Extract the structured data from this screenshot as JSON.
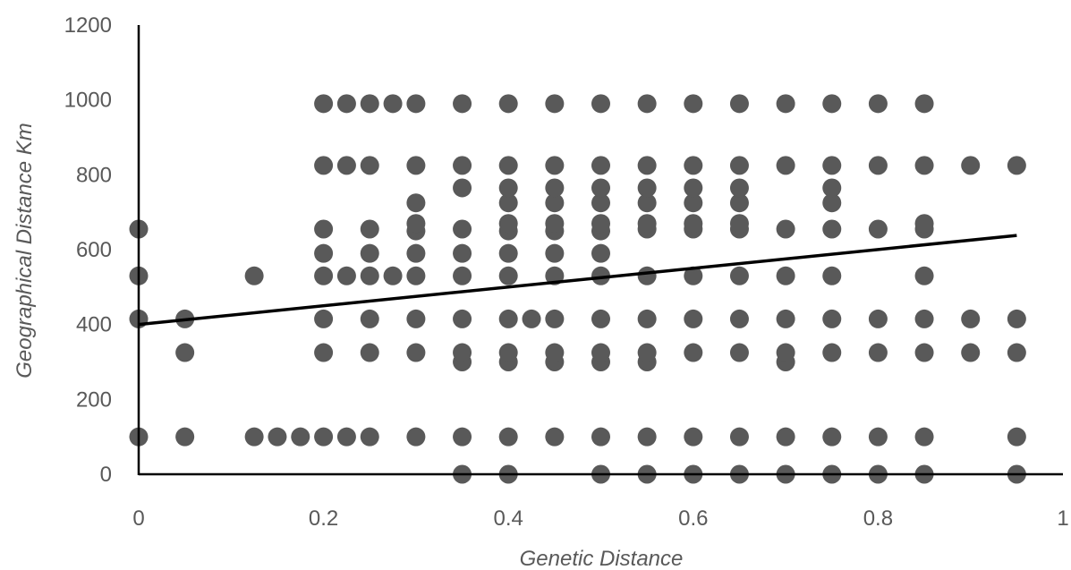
{
  "chart_data": {
    "type": "scatter",
    "title": "",
    "xlabel": "Genetic Distance",
    "ylabel": "Geographical Distance Km",
    "xlim": [
      0,
      1
    ],
    "ylim": [
      0,
      1200
    ],
    "x_ticks": [
      "0",
      "0.2",
      "0.4",
      "0.6",
      "0.8",
      "1"
    ],
    "y_ticks": [
      "0",
      "200",
      "400",
      "600",
      "800",
      "1000",
      "1200"
    ],
    "grid": false,
    "legend": "none",
    "marker_color": "#595959",
    "line_color": "#000000",
    "series": [
      {
        "points": [
          [
            0,
            100
          ],
          [
            0,
            415
          ],
          [
            0,
            530
          ],
          [
            0,
            655
          ],
          [
            0.05,
            100
          ],
          [
            0.05,
            325
          ],
          [
            0.05,
            415
          ],
          [
            0.125,
            100
          ],
          [
            0.125,
            530
          ],
          [
            0.15,
            100
          ],
          [
            0.175,
            100
          ],
          [
            0.2,
            100
          ],
          [
            0.2,
            325
          ],
          [
            0.2,
            415
          ],
          [
            0.2,
            530
          ],
          [
            0.2,
            590
          ],
          [
            0.2,
            655
          ],
          [
            0.2,
            825
          ],
          [
            0.2,
            990
          ],
          [
            0.225,
            100
          ],
          [
            0.225,
            530
          ],
          [
            0.225,
            825
          ],
          [
            0.225,
            990
          ],
          [
            0.25,
            100
          ],
          [
            0.25,
            325
          ],
          [
            0.25,
            415
          ],
          [
            0.25,
            530
          ],
          [
            0.25,
            590
          ],
          [
            0.25,
            655
          ],
          [
            0.25,
            825
          ],
          [
            0.25,
            990
          ],
          [
            0.275,
            530
          ],
          [
            0.275,
            990
          ],
          [
            0.3,
            100
          ],
          [
            0.3,
            325
          ],
          [
            0.3,
            415
          ],
          [
            0.3,
            530
          ],
          [
            0.3,
            590
          ],
          [
            0.3,
            650
          ],
          [
            0.3,
            670
          ],
          [
            0.3,
            725
          ],
          [
            0.3,
            825
          ],
          [
            0.3,
            990
          ],
          [
            0.35,
            0
          ],
          [
            0.35,
            100
          ],
          [
            0.35,
            300
          ],
          [
            0.35,
            325
          ],
          [
            0.35,
            415
          ],
          [
            0.35,
            530
          ],
          [
            0.35,
            590
          ],
          [
            0.35,
            655
          ],
          [
            0.35,
            765
          ],
          [
            0.35,
            825
          ],
          [
            0.35,
            990
          ],
          [
            0.4,
            0
          ],
          [
            0.4,
            100
          ],
          [
            0.4,
            300
          ],
          [
            0.4,
            325
          ],
          [
            0.4,
            415
          ],
          [
            0.4,
            530
          ],
          [
            0.4,
            590
          ],
          [
            0.4,
            650
          ],
          [
            0.4,
            670
          ],
          [
            0.4,
            725
          ],
          [
            0.4,
            765
          ],
          [
            0.4,
            825
          ],
          [
            0.4,
            990
          ],
          [
            0.425,
            415
          ],
          [
            0.45,
            100
          ],
          [
            0.45,
            300
          ],
          [
            0.45,
            325
          ],
          [
            0.45,
            415
          ],
          [
            0.45,
            530
          ],
          [
            0.45,
            590
          ],
          [
            0.45,
            650
          ],
          [
            0.45,
            670
          ],
          [
            0.45,
            725
          ],
          [
            0.45,
            765
          ],
          [
            0.45,
            825
          ],
          [
            0.45,
            990
          ],
          [
            0.5,
            0
          ],
          [
            0.5,
            100
          ],
          [
            0.5,
            300
          ],
          [
            0.5,
            325
          ],
          [
            0.5,
            415
          ],
          [
            0.5,
            530
          ],
          [
            0.5,
            590
          ],
          [
            0.5,
            650
          ],
          [
            0.5,
            670
          ],
          [
            0.5,
            725
          ],
          [
            0.5,
            765
          ],
          [
            0.5,
            825
          ],
          [
            0.5,
            990
          ],
          [
            0.55,
            0
          ],
          [
            0.55,
            100
          ],
          [
            0.55,
            300
          ],
          [
            0.55,
            325
          ],
          [
            0.55,
            415
          ],
          [
            0.55,
            530
          ],
          [
            0.55,
            655
          ],
          [
            0.55,
            670
          ],
          [
            0.55,
            725
          ],
          [
            0.55,
            765
          ],
          [
            0.55,
            825
          ],
          [
            0.55,
            990
          ],
          [
            0.6,
            0
          ],
          [
            0.6,
            100
          ],
          [
            0.6,
            325
          ],
          [
            0.6,
            415
          ],
          [
            0.6,
            530
          ],
          [
            0.6,
            655
          ],
          [
            0.6,
            670
          ],
          [
            0.6,
            725
          ],
          [
            0.6,
            765
          ],
          [
            0.6,
            825
          ],
          [
            0.6,
            990
          ],
          [
            0.65,
            0
          ],
          [
            0.65,
            100
          ],
          [
            0.65,
            325
          ],
          [
            0.65,
            415
          ],
          [
            0.65,
            530
          ],
          [
            0.65,
            655
          ],
          [
            0.65,
            670
          ],
          [
            0.65,
            725
          ],
          [
            0.65,
            765
          ],
          [
            0.65,
            825
          ],
          [
            0.65,
            990
          ],
          [
            0.7,
            0
          ],
          [
            0.7,
            100
          ],
          [
            0.7,
            300
          ],
          [
            0.7,
            325
          ],
          [
            0.7,
            415
          ],
          [
            0.7,
            530
          ],
          [
            0.7,
            655
          ],
          [
            0.7,
            825
          ],
          [
            0.7,
            990
          ],
          [
            0.75,
            0
          ],
          [
            0.75,
            100
          ],
          [
            0.75,
            325
          ],
          [
            0.75,
            415
          ],
          [
            0.75,
            530
          ],
          [
            0.75,
            655
          ],
          [
            0.75,
            725
          ],
          [
            0.75,
            765
          ],
          [
            0.75,
            825
          ],
          [
            0.75,
            990
          ],
          [
            0.8,
            0
          ],
          [
            0.8,
            100
          ],
          [
            0.8,
            325
          ],
          [
            0.8,
            415
          ],
          [
            0.8,
            655
          ],
          [
            0.8,
            825
          ],
          [
            0.8,
            990
          ],
          [
            0.85,
            0
          ],
          [
            0.85,
            100
          ],
          [
            0.85,
            325
          ],
          [
            0.85,
            415
          ],
          [
            0.85,
            530
          ],
          [
            0.85,
            655
          ],
          [
            0.85,
            670
          ],
          [
            0.85,
            825
          ],
          [
            0.85,
            990
          ],
          [
            0.9,
            325
          ],
          [
            0.9,
            415
          ],
          [
            0.9,
            825
          ],
          [
            0.95,
            0
          ],
          [
            0.95,
            100
          ],
          [
            0.95,
            325
          ],
          [
            0.95,
            415
          ],
          [
            0.95,
            825
          ]
        ]
      }
    ],
    "trendline": {
      "x": [
        0,
        0.95
      ],
      "y": [
        400,
        638
      ]
    }
  }
}
